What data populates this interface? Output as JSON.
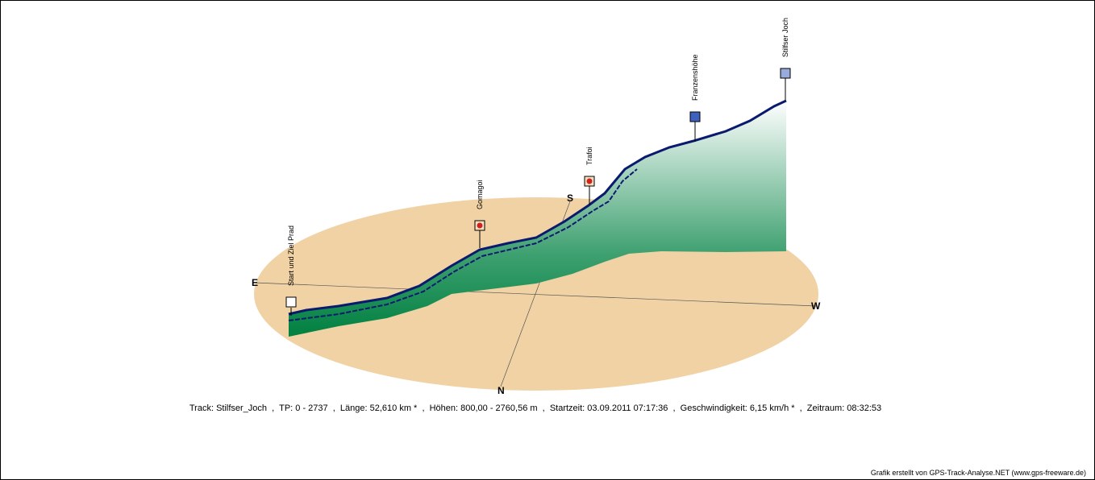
{
  "waypoints": [
    {
      "label": "Start und Ziel Prad"
    },
    {
      "label": "Gomagoi"
    },
    {
      "label": "Trafoi"
    },
    {
      "label": "Franzenshöhe"
    },
    {
      "label": "Stilfser Joch"
    }
  ],
  "compass": {
    "east": "E",
    "west": "W",
    "south": "S",
    "north": "N"
  },
  "info": "Track: Stilfser_Joch  ,  TP: 0 - 2737  ,  Länge: 52,610 km *  ,  Höhen: 800,00 - 2760,56 m  ,  Startzeit: 03.09.2011 07:17:36  ,  Geschwindigkeit: 6,15 km/h *  ,  Zeitraum: 08:32:53",
  "credit": "Grafik erstellt von GPS-Track-Analyse.NET (www.gps-freeware.de)"
}
